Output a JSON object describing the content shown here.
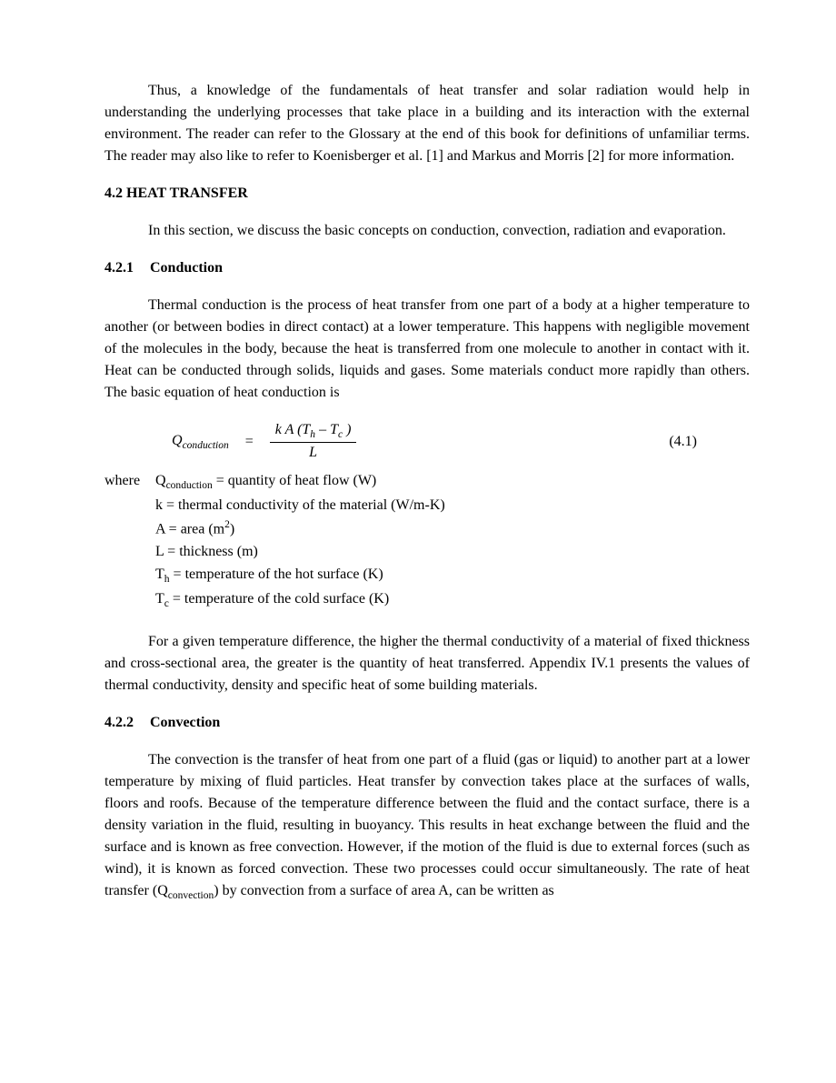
{
  "typography": {
    "font_family": "Times New Roman",
    "body_fontsize_pt": 12,
    "line_height": 1.5,
    "text_color": "#000000",
    "background_color": "#ffffff"
  },
  "para_intro": "Thus, a knowledge of the fundamentals of heat transfer and solar radiation would help in understanding the underlying processes that take place in a building and its interaction with the external environment. The reader can refer to the Glossary at the end of this book for definitions of unfamiliar terms. The reader may also like to refer to Koenisberger et al. [1] and Markus and Morris [2] for more information.",
  "heading_42": "4.2 HEAT TRANSFER",
  "para_42_intro": "In this section, we discuss the basic concepts on conduction, convection, radiation and evaporation.",
  "heading_421_num": "4.2.1",
  "heading_421_title": "Conduction",
  "para_421_1": "Thermal conduction is the process of heat transfer from one part of a body at a higher temperature to another (or between bodies in direct contact) at a lower temperature. This happens with negligible movement of the molecules in the body, because the heat is transferred from one molecule to another in contact with it. Heat can be conducted through solids, liquids and gases. Some materials conduct more rapidly than others. The basic equation of heat conduction is",
  "equation_41": {
    "lhs_symbol": "Q",
    "lhs_subscript": "conduction",
    "numerator_prefix": "k A (T",
    "numerator_sub1": "h",
    "numerator_mid": " – T",
    "numerator_sub2": "c",
    "numerator_suffix": " )",
    "denominator": "L",
    "number": "(4.1)"
  },
  "where": {
    "label": "where",
    "def1_pre": "Q",
    "def1_sub": "conduction",
    "def1_post": " = quantity of heat flow (W)",
    "def2": "k = thermal conductivity of the material (W/m-K)",
    "def3_pre": "A = area (m",
    "def3_sup": "2",
    "def3_post": ")",
    "def4": "L = thickness (m)",
    "def5_pre": "T",
    "def5_sub": "h",
    "def5_post": " = temperature of the hot surface (K)",
    "def6_pre": "T",
    "def6_sub": "c",
    "def6_post": " = temperature of the cold surface (K)"
  },
  "para_421_2": "For a given temperature difference, the higher the thermal conductivity of a material of fixed thickness and cross-sectional area, the greater is the quantity of heat transferred. Appendix IV.1 presents the values of thermal conductivity, density and specific heat of some building materials.",
  "heading_422_num": "4.2.2",
  "heading_422_title": "Convection",
  "para_422_1_pre": "The convection is the transfer of heat from one part of a fluid (gas or liquid) to another part at a lower temperature by mixing of fluid particles. Heat transfer by convection takes place at the surfaces of walls, floors and roofs. Because of the temperature difference between the fluid and the contact surface, there is a density variation in the fluid, resulting in buoyancy. This results in heat exchange between the fluid and the surface and is known as free convection. However, if the motion of the fluid is due to external forces (such as wind), it is known as forced convection. These two processes could occur simultaneously. The rate of heat transfer (Q",
  "para_422_1_sub": "convection",
  "para_422_1_post": ") by convection from a surface of area A, can be written as"
}
